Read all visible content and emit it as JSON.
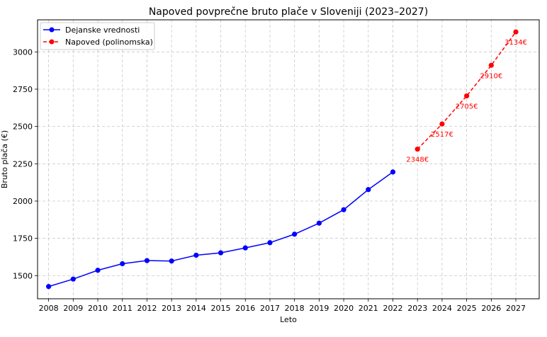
{
  "chart_data": {
    "type": "line",
    "title": "Napoved povprečne bruto plače v Sloveniji (2023–2027)",
    "xlabel": "Leto",
    "ylabel": "Bruto plača (€)",
    "xlim": [
      2007.55,
      2027.95
    ],
    "ylim": [
      1345,
      3215
    ],
    "x_ticks": [
      2008,
      2009,
      2010,
      2011,
      2012,
      2013,
      2014,
      2015,
      2016,
      2017,
      2018,
      2019,
      2020,
      2021,
      2022,
      2023,
      2024,
      2025,
      2026,
      2027
    ],
    "y_ticks": [
      1500,
      1750,
      2000,
      2250,
      2500,
      2750,
      3000
    ],
    "grid": true,
    "legend_position": "upper left",
    "series": [
      {
        "name": "Dejanske vrednosti",
        "color": "#0000ff",
        "line_style": "solid",
        "marker": "circle",
        "x": [
          2008,
          2009,
          2010,
          2011,
          2012,
          2013,
          2014,
          2015,
          2016,
          2017,
          2018,
          2019,
          2020,
          2021,
          2022
        ],
        "values": [
          1427,
          1477,
          1536,
          1580,
          1601,
          1598,
          1637,
          1653,
          1686,
          1721,
          1778,
          1852,
          1942,
          2077,
          2195
        ]
      },
      {
        "name": "Napoved (polinomska)",
        "color": "#ff0000",
        "line_style": "dashed",
        "marker": "circle",
        "x": [
          2023,
          2024,
          2025,
          2026,
          2027
        ],
        "values": [
          2348,
          2517,
          2705,
          2910,
          3134
        ],
        "data_labels": [
          "2348€",
          "2517€",
          "2705€",
          "2910€",
          "3134€"
        ]
      }
    ]
  }
}
